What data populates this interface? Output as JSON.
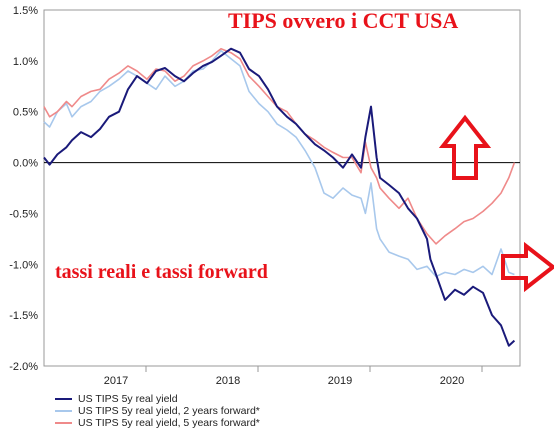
{
  "chart_data": {
    "type": "line",
    "title": "TIPS ovvero i CCT USA",
    "annotation": "tassi reali e tassi forward",
    "y_ticks": [
      "1.5%",
      "1.0%",
      "0.5%",
      "0.0%",
      "-0.5%",
      "-1.0%",
      "-1.5%",
      "-2.0%"
    ],
    "y_tick_values": [
      1.5,
      1.0,
      0.5,
      0.0,
      -0.5,
      -1.0,
      -1.5,
      -2.0
    ],
    "x_ticks": [
      "2017",
      "2018",
      "2019",
      "2020"
    ],
    "x_tick_values": [
      2017,
      2018,
      2019,
      2020
    ],
    "xlim": [
      2016.75,
      2021.0
    ],
    "ylim": [
      -2.0,
      1.5
    ],
    "ylabel": "",
    "xlabel": "",
    "grid": false,
    "legend_position": "bottom-left",
    "series": [
      {
        "name": "US TIPS 5y real yield",
        "color": "#1a1a7a",
        "x": [
          2016.75,
          2016.8,
          2016.87,
          2016.95,
          2017.0,
          2017.08,
          2017.17,
          2017.25,
          2017.33,
          2017.42,
          2017.5,
          2017.58,
          2017.67,
          2017.75,
          2017.83,
          2017.92,
          2018.0,
          2018.08,
          2018.17,
          2018.25,
          2018.33,
          2018.42,
          2018.5,
          2018.58,
          2018.67,
          2018.75,
          2018.83,
          2018.92,
          2019.0,
          2019.08,
          2019.17,
          2019.25,
          2019.33,
          2019.42,
          2019.5,
          2019.58,
          2019.62,
          2019.67,
          2019.72,
          2019.75,
          2019.83,
          2019.92,
          2020.0,
          2020.08,
          2020.17,
          2020.2,
          2020.25,
          2020.33,
          2020.42,
          2020.5,
          2020.58,
          2020.67,
          2020.75,
          2020.83,
          2020.9,
          2020.95
        ],
        "y": [
          0.05,
          -0.02,
          0.08,
          0.15,
          0.22,
          0.3,
          0.25,
          0.33,
          0.45,
          0.5,
          0.72,
          0.85,
          0.78,
          0.9,
          0.93,
          0.85,
          0.8,
          0.88,
          0.95,
          0.99,
          1.05,
          1.12,
          1.08,
          0.92,
          0.85,
          0.72,
          0.55,
          0.45,
          0.38,
          0.28,
          0.18,
          0.12,
          0.05,
          -0.05,
          0.08,
          -0.05,
          0.25,
          0.55,
          0.05,
          -0.15,
          -0.22,
          -0.3,
          -0.45,
          -0.55,
          -0.75,
          -0.95,
          -1.1,
          -1.35,
          -1.25,
          -1.3,
          -1.22,
          -1.28,
          -1.5,
          -1.6,
          -1.8,
          -1.75
        ]
      },
      {
        "name": "US TIPS 5y real yield, 2 years forward*",
        "color": "#a8c8ec",
        "x": [
          2016.75,
          2016.8,
          2016.87,
          2016.95,
          2017.0,
          2017.08,
          2017.17,
          2017.25,
          2017.33,
          2017.42,
          2017.5,
          2017.58,
          2017.67,
          2017.75,
          2017.83,
          2017.92,
          2018.0,
          2018.08,
          2018.17,
          2018.25,
          2018.33,
          2018.42,
          2018.5,
          2018.58,
          2018.67,
          2018.75,
          2018.83,
          2018.92,
          2019.0,
          2019.08,
          2019.17,
          2019.25,
          2019.33,
          2019.42,
          2019.5,
          2019.58,
          2019.62,
          2019.67,
          2019.72,
          2019.75,
          2019.83,
          2019.92,
          2020.0,
          2020.08,
          2020.17,
          2020.25,
          2020.33,
          2020.42,
          2020.5,
          2020.58,
          2020.67,
          2020.75,
          2020.83,
          2020.9,
          2020.95
        ],
        "y": [
          0.4,
          0.35,
          0.5,
          0.58,
          0.45,
          0.55,
          0.6,
          0.7,
          0.75,
          0.82,
          0.9,
          0.85,
          0.78,
          0.72,
          0.85,
          0.75,
          0.8,
          0.9,
          0.92,
          1.0,
          1.1,
          1.02,
          0.95,
          0.7,
          0.58,
          0.5,
          0.38,
          0.32,
          0.25,
          0.12,
          -0.05,
          -0.3,
          -0.35,
          -0.25,
          -0.32,
          -0.35,
          -0.5,
          -0.2,
          -0.65,
          -0.75,
          -0.88,
          -0.92,
          -0.95,
          -1.05,
          -1.02,
          -1.12,
          -1.08,
          -1.1,
          -1.05,
          -1.08,
          -1.02,
          -1.1,
          -0.85,
          -1.08,
          -1.1
        ]
      },
      {
        "name": "US TIPS 5y real yield, 5 years forward*",
        "color": "#ef8a8a",
        "x": [
          2016.75,
          2016.8,
          2016.87,
          2016.95,
          2017.0,
          2017.08,
          2017.17,
          2017.25,
          2017.33,
          2017.42,
          2017.5,
          2017.58,
          2017.67,
          2017.75,
          2017.83,
          2017.92,
          2018.0,
          2018.08,
          2018.17,
          2018.25,
          2018.33,
          2018.42,
          2018.5,
          2018.58,
          2018.67,
          2018.75,
          2018.83,
          2018.92,
          2019.0,
          2019.08,
          2019.17,
          2019.25,
          2019.33,
          2019.42,
          2019.5,
          2019.58,
          2019.62,
          2019.67,
          2019.72,
          2019.75,
          2019.83,
          2019.92,
          2020.0,
          2020.08,
          2020.17,
          2020.25,
          2020.33,
          2020.42,
          2020.5,
          2020.58,
          2020.67,
          2020.75,
          2020.83,
          2020.9,
          2020.95
        ],
        "y": [
          0.55,
          0.45,
          0.5,
          0.6,
          0.55,
          0.65,
          0.7,
          0.72,
          0.82,
          0.88,
          0.95,
          0.9,
          0.82,
          0.92,
          0.9,
          0.8,
          0.85,
          0.95,
          1.0,
          1.05,
          1.12,
          1.08,
          1.02,
          0.85,
          0.75,
          0.65,
          0.55,
          0.5,
          0.38,
          0.28,
          0.22,
          0.15,
          0.1,
          0.05,
          0.05,
          -0.1,
          0.2,
          -0.05,
          -0.15,
          -0.25,
          -0.35,
          -0.45,
          -0.35,
          -0.55,
          -0.7,
          -0.8,
          -0.72,
          -0.65,
          -0.58,
          -0.55,
          -0.48,
          -0.4,
          -0.3,
          -0.15,
          0.0
        ]
      }
    ]
  }
}
